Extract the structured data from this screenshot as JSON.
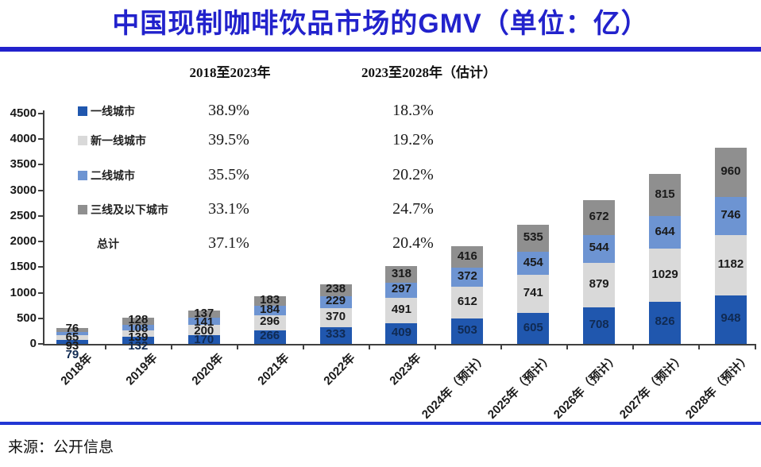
{
  "title": "中国现制咖啡饮品市场的GMV（单位：亿）",
  "source": "来源：公开信息",
  "cagr_table": {
    "period1_header": "2018至2023年",
    "period2_header": "2023至2028年（估计）",
    "rows": [
      {
        "label": "一线城市",
        "swatch": "#2057AE",
        "p1": "38.9%",
        "p2": "18.3%"
      },
      {
        "label": "新一线城市",
        "swatch": "#D9D9D9",
        "p1": "39.5%",
        "p2": "19.2%"
      },
      {
        "label": "二线城市",
        "swatch": "#6D94D2",
        "p1": "35.5%",
        "p2": "20.2%"
      },
      {
        "label": "三线及以下城市",
        "swatch": "#8F8F8F",
        "p1": "33.1%",
        "p2": "24.7%"
      },
      {
        "label": "总计",
        "swatch": null,
        "p1": "37.1%",
        "p2": "20.4%"
      }
    ]
  },
  "chart_data": {
    "type": "bar",
    "stacked": true,
    "title": "中国现制咖啡饮品市场的GMV（单位：亿）",
    "xlabel": "",
    "ylabel": "",
    "ylim": [
      0,
      4500
    ],
    "ytick_step": 500,
    "yticks": [
      0,
      500,
      1000,
      1500,
      2000,
      2500,
      3000,
      3500,
      4000,
      4500
    ],
    "grid": false,
    "legend_position": "upper-left",
    "categories": [
      "2018年",
      "2019年",
      "2020年",
      "2021年",
      "2022年",
      "2023年",
      "2024年（预计）",
      "2025年（预计）",
      "2026年（预计）",
      "2027年（预计）",
      "2028年（预计）"
    ],
    "series": [
      {
        "name": "一线城市",
        "color": "#2057AE",
        "value_label_color": "#102A52",
        "values": [
          79,
          132,
          170,
          266,
          333,
          409,
          503,
          605,
          708,
          826,
          948
        ]
      },
      {
        "name": "新一线城市",
        "color": "#D9D9D9",
        "value_label_color": "#1A1A1A",
        "values": [
          93,
          139,
          200,
          296,
          370,
          491,
          612,
          741,
          879,
          1029,
          1182
        ]
      },
      {
        "name": "二线城市",
        "color": "#6D94D2",
        "value_label_color": "#1A1A1A",
        "values": [
          65,
          108,
          141,
          184,
          229,
          297,
          372,
          454,
          544,
          644,
          746
        ]
      },
      {
        "name": "三线及以下城市",
        "color": "#8F8F8F",
        "value_label_color": "#1A1A1A",
        "values": [
          76,
          128,
          137,
          183,
          238,
          318,
          416,
          535,
          672,
          815,
          960
        ]
      }
    ]
  }
}
